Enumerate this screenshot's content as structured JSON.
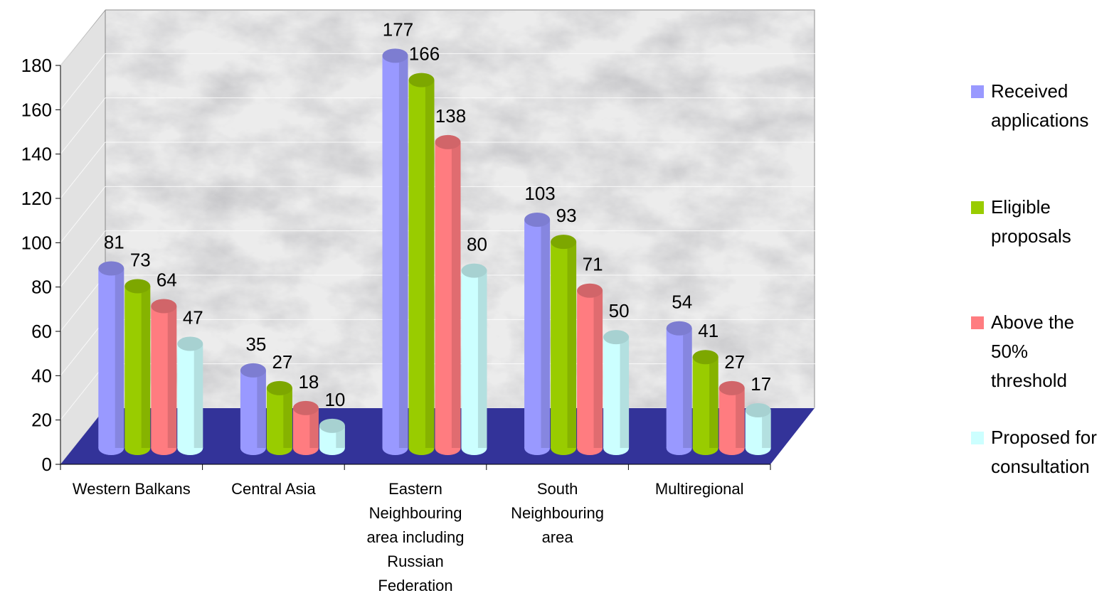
{
  "chart_data": {
    "type": "bar3d",
    "categories": [
      "Western Balkans",
      "Central Asia",
      "Eastern Neighbouring area including Russian Federation",
      "South Neighbouring area",
      "Multiregional"
    ],
    "series": [
      {
        "name": "Received applications",
        "color": "#9999ff",
        "values": [
          81,
          35,
          177,
          103,
          54
        ]
      },
      {
        "name": "Eligible proposals",
        "color": "#99cc00",
        "values": [
          73,
          27,
          166,
          93,
          41
        ]
      },
      {
        "name": "Above the 50% threshold",
        "color": "#ff7c80",
        "values": [
          64,
          18,
          138,
          71,
          27
        ]
      },
      {
        "name": "Proposed for consultation",
        "color": "#ccffff",
        "values": [
          47,
          10,
          80,
          50,
          17
        ]
      }
    ],
    "ylim": [
      0,
      180
    ],
    "yticks": [
      0,
      20,
      40,
      60,
      80,
      100,
      120,
      140,
      160,
      180
    ],
    "grid": true,
    "legend": "right",
    "floor_color": "#333399"
  }
}
